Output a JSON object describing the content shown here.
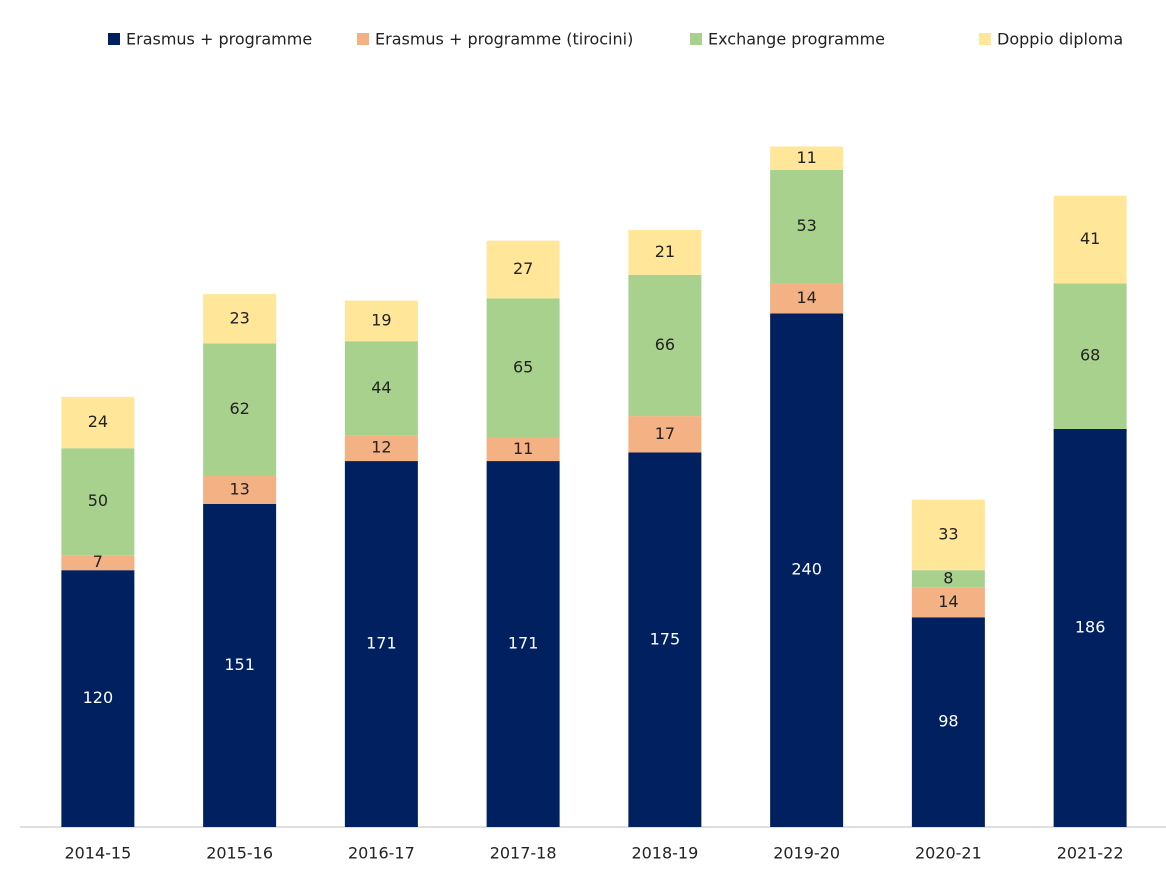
{
  "chart_data": {
    "type": "stacked_bar",
    "categories": [
      "2014-15",
      "2015-16",
      "2016-17",
      "2017-18",
      "2018-19",
      "2019-20",
      "2020-21",
      "2021-22"
    ],
    "series": [
      {
        "name": "Erasmus + programme",
        "color": "#002060",
        "values": [
          120,
          151,
          171,
          171,
          175,
          240,
          98,
          186
        ]
      },
      {
        "name": "Erasmus + programme (tirocini)",
        "color": "#f4b183",
        "values": [
          7,
          13,
          12,
          11,
          17,
          14,
          14,
          null
        ]
      },
      {
        "name": "Exchange programme",
        "color": "#a9d18e",
        "values": [
          50,
          62,
          44,
          65,
          66,
          53,
          8,
          68
        ]
      },
      {
        "name": "Doppio diploma",
        "color": "#ffe699",
        "values": [
          24,
          23,
          19,
          27,
          21,
          11,
          33,
          41
        ]
      }
    ],
    "ylim": [
      0,
      350
    ],
    "legend": "top"
  }
}
